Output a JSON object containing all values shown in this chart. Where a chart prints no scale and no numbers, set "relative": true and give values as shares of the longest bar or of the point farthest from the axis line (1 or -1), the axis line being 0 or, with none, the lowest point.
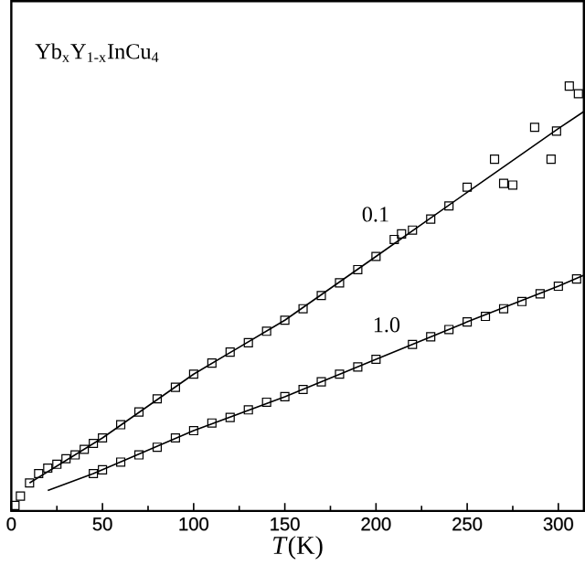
{
  "chart_data": {
    "type": "scatter",
    "relative": true,
    "xlabel": "*T*(K)",
    "annotations": [
      "Yb$_{x}$Y$_{1-x}$InCu$_{4}$"
    ],
    "xlim": [
      0,
      314
    ],
    "xticks": [
      0,
      50,
      100,
      150,
      200,
      250,
      300
    ],
    "marker": "square",
    "grid": false,
    "series": [
      {
        "name": "0.1",
        "color": "#000000",
        "x": [
          2,
          5,
          10,
          15,
          20,
          25,
          30,
          35,
          40,
          45,
          50,
          60,
          70,
          80,
          90,
          100,
          110,
          120,
          130,
          140,
          150,
          160,
          170,
          180,
          190,
          200,
          210,
          214,
          220,
          230,
          240,
          250,
          265,
          270,
          275,
          287,
          296,
          299,
          306,
          311
        ],
        "values": [
          0.013,
          0.035,
          0.066,
          0.088,
          0.101,
          0.11,
          0.123,
          0.132,
          0.145,
          0.159,
          0.172,
          0.203,
          0.233,
          0.264,
          0.291,
          0.322,
          0.348,
          0.374,
          0.396,
          0.423,
          0.449,
          0.476,
          0.507,
          0.537,
          0.568,
          0.599,
          0.639,
          0.652,
          0.661,
          0.687,
          0.718,
          0.762,
          0.828,
          0.771,
          0.767,
          0.903,
          0.828,
          0.894,
          1.0,
          0.982
        ]
      },
      {
        "name": "1.0",
        "color": "#000000",
        "x": [
          45,
          50,
          60,
          70,
          80,
          90,
          100,
          110,
          120,
          130,
          140,
          150,
          160,
          170,
          180,
          190,
          200,
          220,
          230,
          240,
          250,
          260,
          270,
          280,
          290,
          300,
          310
        ],
        "values": [
          0.088,
          0.097,
          0.115,
          0.132,
          0.15,
          0.172,
          0.189,
          0.207,
          0.22,
          0.238,
          0.256,
          0.269,
          0.286,
          0.304,
          0.322,
          0.339,
          0.357,
          0.392,
          0.41,
          0.427,
          0.445,
          0.458,
          0.476,
          0.493,
          0.511,
          0.529,
          0.546
        ]
      },
      {
        "type": "line",
        "color": "#000000",
        "marker": "none",
        "x": [
          10,
          50,
          100,
          150,
          200,
          250,
          300,
          314
        ],
        "values": [
          0.066,
          0.172,
          0.322,
          0.449,
          0.599,
          0.75,
          0.9,
          0.94
        ]
      },
      {
        "type": "line",
        "color": "#000000",
        "marker": "none",
        "x": [
          20,
          45,
          100,
          150,
          200,
          250,
          300,
          314
        ],
        "values": [
          0.048,
          0.088,
          0.189,
          0.269,
          0.357,
          0.445,
          0.529,
          0.555
        ]
      }
    ]
  }
}
